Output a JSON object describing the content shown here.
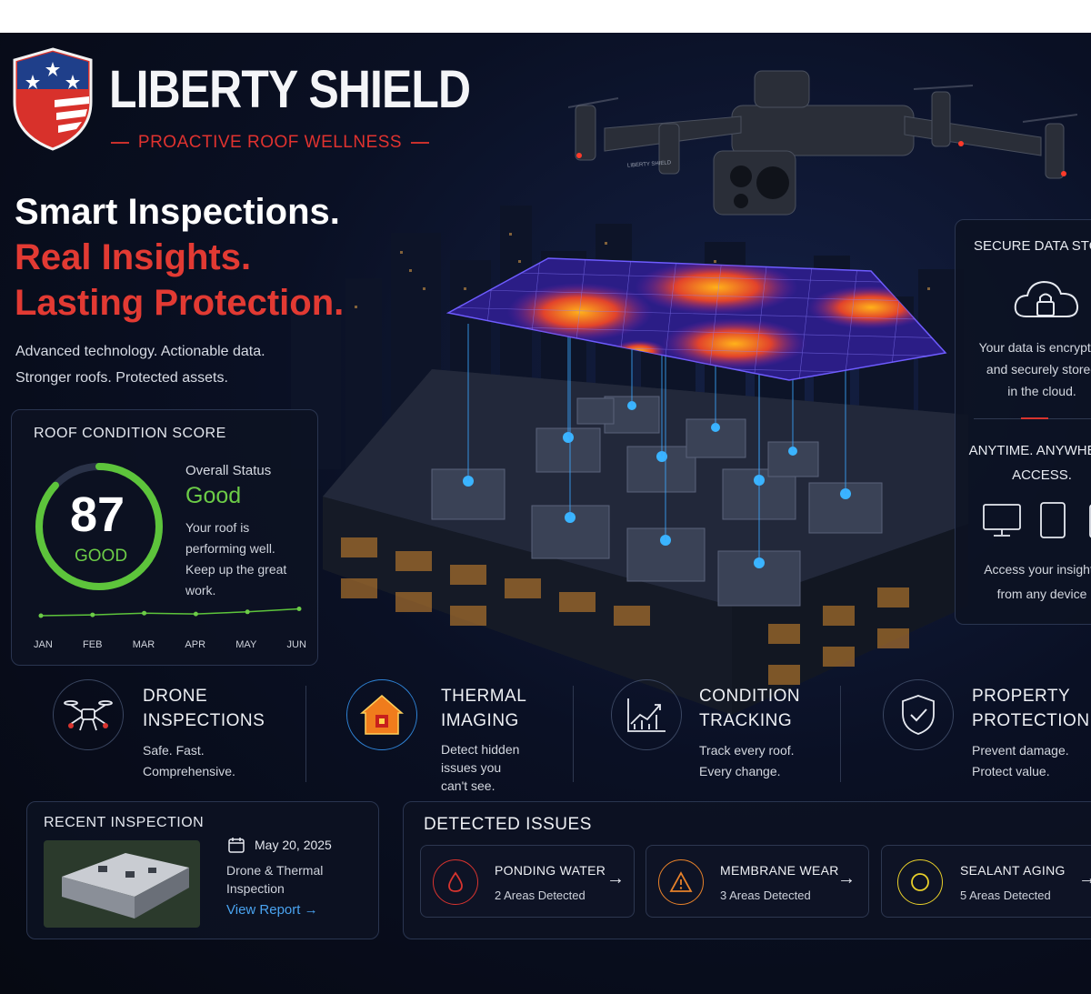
{
  "brand": {
    "name": "LIBERTY SHIELD",
    "tagline": "PROACTIVE ROOF WELLNESS",
    "colors": {
      "accent_red": "#e23a33",
      "good_green": "#6ccc47",
      "link_blue": "#4aa3f0"
    }
  },
  "hero": {
    "line1": "Smart Inspections.",
    "line2": "Real Insights.",
    "line3": "Lasting Protection.",
    "sub1": "Advanced technology. Actionable data.",
    "sub2": "Stronger roofs. Protected assets."
  },
  "drone_label": "LIBERTY SHIELD",
  "score_card": {
    "title": "ROOF CONDITION SCORE",
    "score": "87",
    "score_label": "GOOD",
    "score_fraction": 0.87,
    "status_title": "Overall Status",
    "status_value": "Good",
    "status_desc": "Your roof is performing well. Keep up the great work.",
    "chart_data": {
      "type": "line",
      "categories": [
        "JAN",
        "FEB",
        "MAR",
        "APR",
        "MAY",
        "JUN"
      ],
      "values": [
        3,
        3.2,
        3.6,
        3.4,
        3.9,
        4.6
      ]
    }
  },
  "data_panel": {
    "title": "SECURE DATA STORAGE",
    "text1": "Your data is encrypted",
    "text2": "and securely stored",
    "text3": "in the cloud.",
    "access_title1": "ANYTIME. ANYWHERE",
    "access_title2": "ACCESS.",
    "access_text1": "Access your insights",
    "access_text2": "from any device",
    "icons": [
      "cloud-lock-icon",
      "monitor-icon",
      "tablet-icon",
      "phone-icon"
    ]
  },
  "features": [
    {
      "icon": "drone-icon",
      "title1": "DRONE",
      "title2": "INSPECTIONS",
      "desc1": "Safe. Fast.",
      "desc2": "Comprehensive.",
      "desc3": ""
    },
    {
      "icon": "thermal-house-icon",
      "title1": "THERMAL",
      "title2": "IMAGING",
      "desc1": "Detect hidden",
      "desc2": "issues you",
      "desc3": "can't see."
    },
    {
      "icon": "growth-chart-icon",
      "title1": "CONDITION",
      "title2": "TRACKING",
      "desc1": "Track every roof.",
      "desc2": "Every change.",
      "desc3": ""
    },
    {
      "icon": "shield-check-icon",
      "title1": "PROPERTY",
      "title2": "PROTECTION",
      "desc1": "Prevent damage.",
      "desc2": "Protect value.",
      "desc3": ""
    }
  ],
  "recent": {
    "title": "RECENT INSPECTION",
    "date": "May 20, 2025",
    "type1": "Drone & Thermal",
    "type2": "Inspection",
    "link": "View Report →"
  },
  "issues": {
    "title": "DETECTED ISSUES",
    "items": [
      {
        "name": "PONDING WATER",
        "detail": "2 Areas Detected",
        "icon": "water-drop-icon",
        "color": "#d8342f"
      },
      {
        "name": "MEMBRANE WEAR",
        "detail": "3 Areas Detected",
        "icon": "warning-icon",
        "color": "#e8822a"
      },
      {
        "name": "SEALANT AGING",
        "detail": "5 Areas Detected",
        "icon": "circle-icon",
        "color": "#e8cf2a"
      }
    ]
  }
}
